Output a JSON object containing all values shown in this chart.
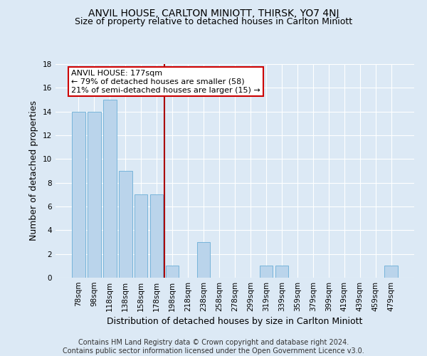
{
  "title": "ANVIL HOUSE, CARLTON MINIOTT, THIRSK, YO7 4NJ",
  "subtitle": "Size of property relative to detached houses in Carlton Miniott",
  "xlabel": "Distribution of detached houses by size in Carlton Miniott",
  "ylabel": "Number of detached properties",
  "footer_line1": "Contains HM Land Registry data © Crown copyright and database right 2024.",
  "footer_line2": "Contains public sector information licensed under the Open Government Licence v3.0.",
  "bin_labels": [
    "78sqm",
    "98sqm",
    "118sqm",
    "138sqm",
    "158sqm",
    "178sqm",
    "198sqm",
    "218sqm",
    "238sqm",
    "258sqm",
    "278sqm",
    "299sqm",
    "319sqm",
    "339sqm",
    "359sqm",
    "379sqm",
    "399sqm",
    "419sqm",
    "439sqm",
    "459sqm",
    "479sqm"
  ],
  "bar_values": [
    14,
    14,
    15,
    9,
    7,
    7,
    1,
    0,
    3,
    0,
    0,
    0,
    1,
    1,
    0,
    0,
    0,
    0,
    0,
    0,
    1
  ],
  "bar_color": "#bad4eb",
  "bar_edgecolor": "#6aaed6",
  "annotation_text_line1": "ANVIL HOUSE: 177sqm",
  "annotation_text_line2": "← 79% of detached houses are smaller (58)",
  "annotation_text_line3": "21% of semi-detached houses are larger (15) →",
  "annotation_box_color": "#ffffff",
  "annotation_box_edgecolor": "#cc0000",
  "vline_color": "#aa0000",
  "vline_x": 5.5,
  "ylim": [
    0,
    18
  ],
  "yticks": [
    0,
    2,
    4,
    6,
    8,
    10,
    12,
    14,
    16,
    18
  ],
  "background_color": "#dce9f5",
  "grid_color": "#ffffff",
  "title_fontsize": 10,
  "subtitle_fontsize": 9,
  "axis_label_fontsize": 9,
  "tick_fontsize": 7.5,
  "footer_fontsize": 7,
  "annotation_fontsize": 8
}
